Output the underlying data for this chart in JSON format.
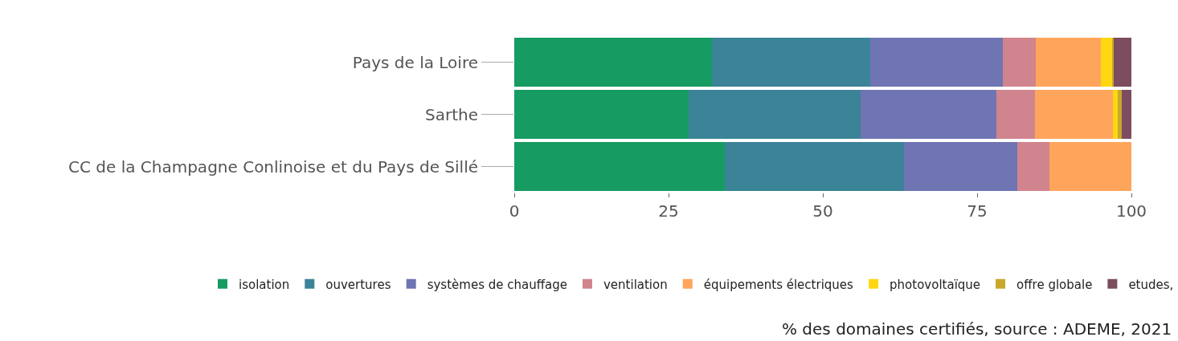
{
  "chart_data": {
    "type": "bar",
    "orientation": "horizontal",
    "stacked": true,
    "categories": [
      "Pays de la Loire",
      "Sarthe",
      "CC de la Champagne Conlinoise et du Pays de Sillé"
    ],
    "series": [
      {
        "name": "isolation",
        "color": "#169b62",
        "values": [
          32.0,
          28.3,
          34.1
        ]
      },
      {
        "name": "ouvertures",
        "color": "#3b8397",
        "values": [
          25.7,
          27.8,
          29.0
        ]
      },
      {
        "name": "systèmes de chauffage",
        "color": "#6f74b3",
        "values": [
          21.5,
          22.0,
          18.4
        ]
      },
      {
        "name": "ventilation",
        "color": "#d0848e",
        "values": [
          5.3,
          6.3,
          5.2
        ]
      },
      {
        "name": "équipements électriques",
        "color": "#fea55b",
        "values": [
          10.6,
          12.6,
          13.3
        ]
      },
      {
        "name": "photovoltaïque",
        "color": "#fed712",
        "values": [
          1.8,
          0.8,
          0
        ]
      },
      {
        "name": "offre globale",
        "color": "#c9a82c",
        "values": [
          0.2,
          0.6,
          0
        ]
      },
      {
        "name": "etudes,",
        "color": "#7b4d5e",
        "values": [
          2.9,
          1.6,
          0
        ]
      }
    ],
    "xlim": [
      0,
      100
    ],
    "xticks": [
      0,
      25,
      50,
      75,
      100
    ],
    "grid": false,
    "legend": "bottom",
    "annotations": [
      "% des domaines certifiés, source : ADEME, 2021"
    ]
  }
}
